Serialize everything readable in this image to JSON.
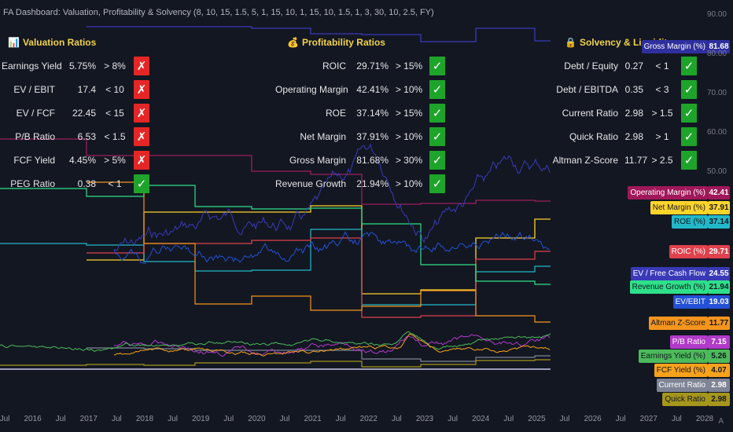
{
  "title": "FA Dashboard: Valuation, Profitability & Solvency (8, 10, 15, 1.5, 5, 1, 15, 10, 1, 15, 10, 1.5, 1, 3, 30, 10, 2.5, FY)",
  "sections": {
    "valuation": {
      "title": "Valuation Ratios",
      "icon": "📊",
      "rows": [
        {
          "label": "Earnings Yield",
          "value": "5.75%",
          "threshold": "> 8%",
          "pass": false
        },
        {
          "label": "EV / EBIT",
          "value": "17.4",
          "threshold": "< 10",
          "pass": false
        },
        {
          "label": "EV / FCF",
          "value": "22.45",
          "threshold": "< 15",
          "pass": false
        },
        {
          "label": "P/B Ratio",
          "value": "6.53",
          "threshold": "< 1.5",
          "pass": false
        },
        {
          "label": "FCF Yield",
          "value": "4.45%",
          "threshold": "> 5%",
          "pass": false
        },
        {
          "label": "PEG Ratio",
          "value": "0.38",
          "threshold": "< 1",
          "pass": true
        }
      ]
    },
    "profitability": {
      "title": "Profitability Ratios",
      "icon": "💰",
      "rows": [
        {
          "label": "ROIC",
          "value": "29.71%",
          "threshold": "> 15%",
          "pass": true
        },
        {
          "label": "Operating Margin",
          "value": "42.41%",
          "threshold": "> 10%",
          "pass": true
        },
        {
          "label": "ROE",
          "value": "37.14%",
          "threshold": "> 15%",
          "pass": true
        },
        {
          "label": "Net Margin",
          "value": "37.91%",
          "threshold": "> 10%",
          "pass": true
        },
        {
          "label": "Gross Margin",
          "value": "81.68%",
          "threshold": "> 30%",
          "pass": true
        },
        {
          "label": "Revenue Growth",
          "value": "21.94%",
          "threshold": "> 10%",
          "pass": true
        }
      ]
    },
    "solvency": {
      "title": "Solvency & Liquidity",
      "icon": "🔒",
      "rows": [
        {
          "label": "Debt / Equity",
          "value": "0.27",
          "threshold": "< 1",
          "pass": true
        },
        {
          "label": "Debt / EBITDA",
          "value": "0.35",
          "threshold": "< 3",
          "pass": true
        },
        {
          "label": "Current Ratio",
          "value": "2.98",
          "threshold": "> 1.5",
          "pass": true
        },
        {
          "label": "Quick Ratio",
          "value": "2.98",
          "threshold": "> 1",
          "pass": true
        },
        {
          "label": "Altman Z-Score",
          "value": "11.77",
          "threshold": "> 2.5",
          "pass": true
        }
      ]
    }
  },
  "marks": {
    "pass": "✓",
    "fail": "✗"
  },
  "right_labels": [
    {
      "name": "Gross Margin (%)",
      "value": "81.68",
      "color": "#2f2f9e",
      "text": "#ffffff"
    },
    {
      "name": "Operating Margin (%)",
      "value": "42.41",
      "color": "#a0185a",
      "text": "#ffffff"
    },
    {
      "name": "Net Margin (%)",
      "value": "37.91",
      "color": "#ffd42a",
      "text": "#131722"
    },
    {
      "name": "ROE (%)",
      "value": "37.14",
      "color": "#22b8c8",
      "text": "#131722"
    },
    {
      "name": "ROIC (%)",
      "value": "29.71",
      "color": "#e0414d",
      "text": "#ffffff"
    },
    {
      "name": "EV / Free Cash Flow",
      "value": "24.55",
      "color": "#3a3ab8",
      "text": "#ffffff"
    },
    {
      "name": "Revenue Growth (%)",
      "value": "21.94",
      "color": "#2ee08a",
      "text": "#131722"
    },
    {
      "name": "EV/EBIT",
      "value": "19.03",
      "color": "#2451d6",
      "text": "#ffffff"
    },
    {
      "name": "Altman Z-Score",
      "value": "11.77",
      "color": "#f5951c",
      "text": "#131722"
    },
    {
      "name": "P/B Ratio",
      "value": "7.15",
      "color": "#b13ac8",
      "text": "#ffffff"
    },
    {
      "name": "Earnings Yield (%)",
      "value": "5.26",
      "color": "#4cba5a",
      "text": "#131722"
    },
    {
      "name": "FCF Yield (%)",
      "value": "4.07",
      "color": "#f7a21b",
      "text": "#131722"
    },
    {
      "name": "Current Ratio",
      "value": "2.98",
      "color": "#7f8596",
      "text": "#ffffff"
    },
    {
      "name": "Quick Ratio",
      "value": "2.98",
      "color": "#a5961c",
      "text": "#131722"
    }
  ],
  "y_axis": [
    "90.00",
    "80.00",
    "70.00",
    "60.00",
    "50.00"
  ],
  "x_axis": [
    "Jul",
    "2016",
    "Jul",
    "2017",
    "Jul",
    "2018",
    "Jul",
    "2019",
    "Jul",
    "2020",
    "Jul",
    "2021",
    "Jul",
    "2022",
    "Jul",
    "2023",
    "Jul",
    "2024",
    "Jul",
    "2025",
    "Jul",
    "2026",
    "Jul",
    "2027",
    "Jul",
    "2028"
  ],
  "axis_corner": "A",
  "colors": {
    "background": "#131722",
    "title": "#f0d24a",
    "pass": "#1ea42a",
    "fail": "#e52626"
  }
}
